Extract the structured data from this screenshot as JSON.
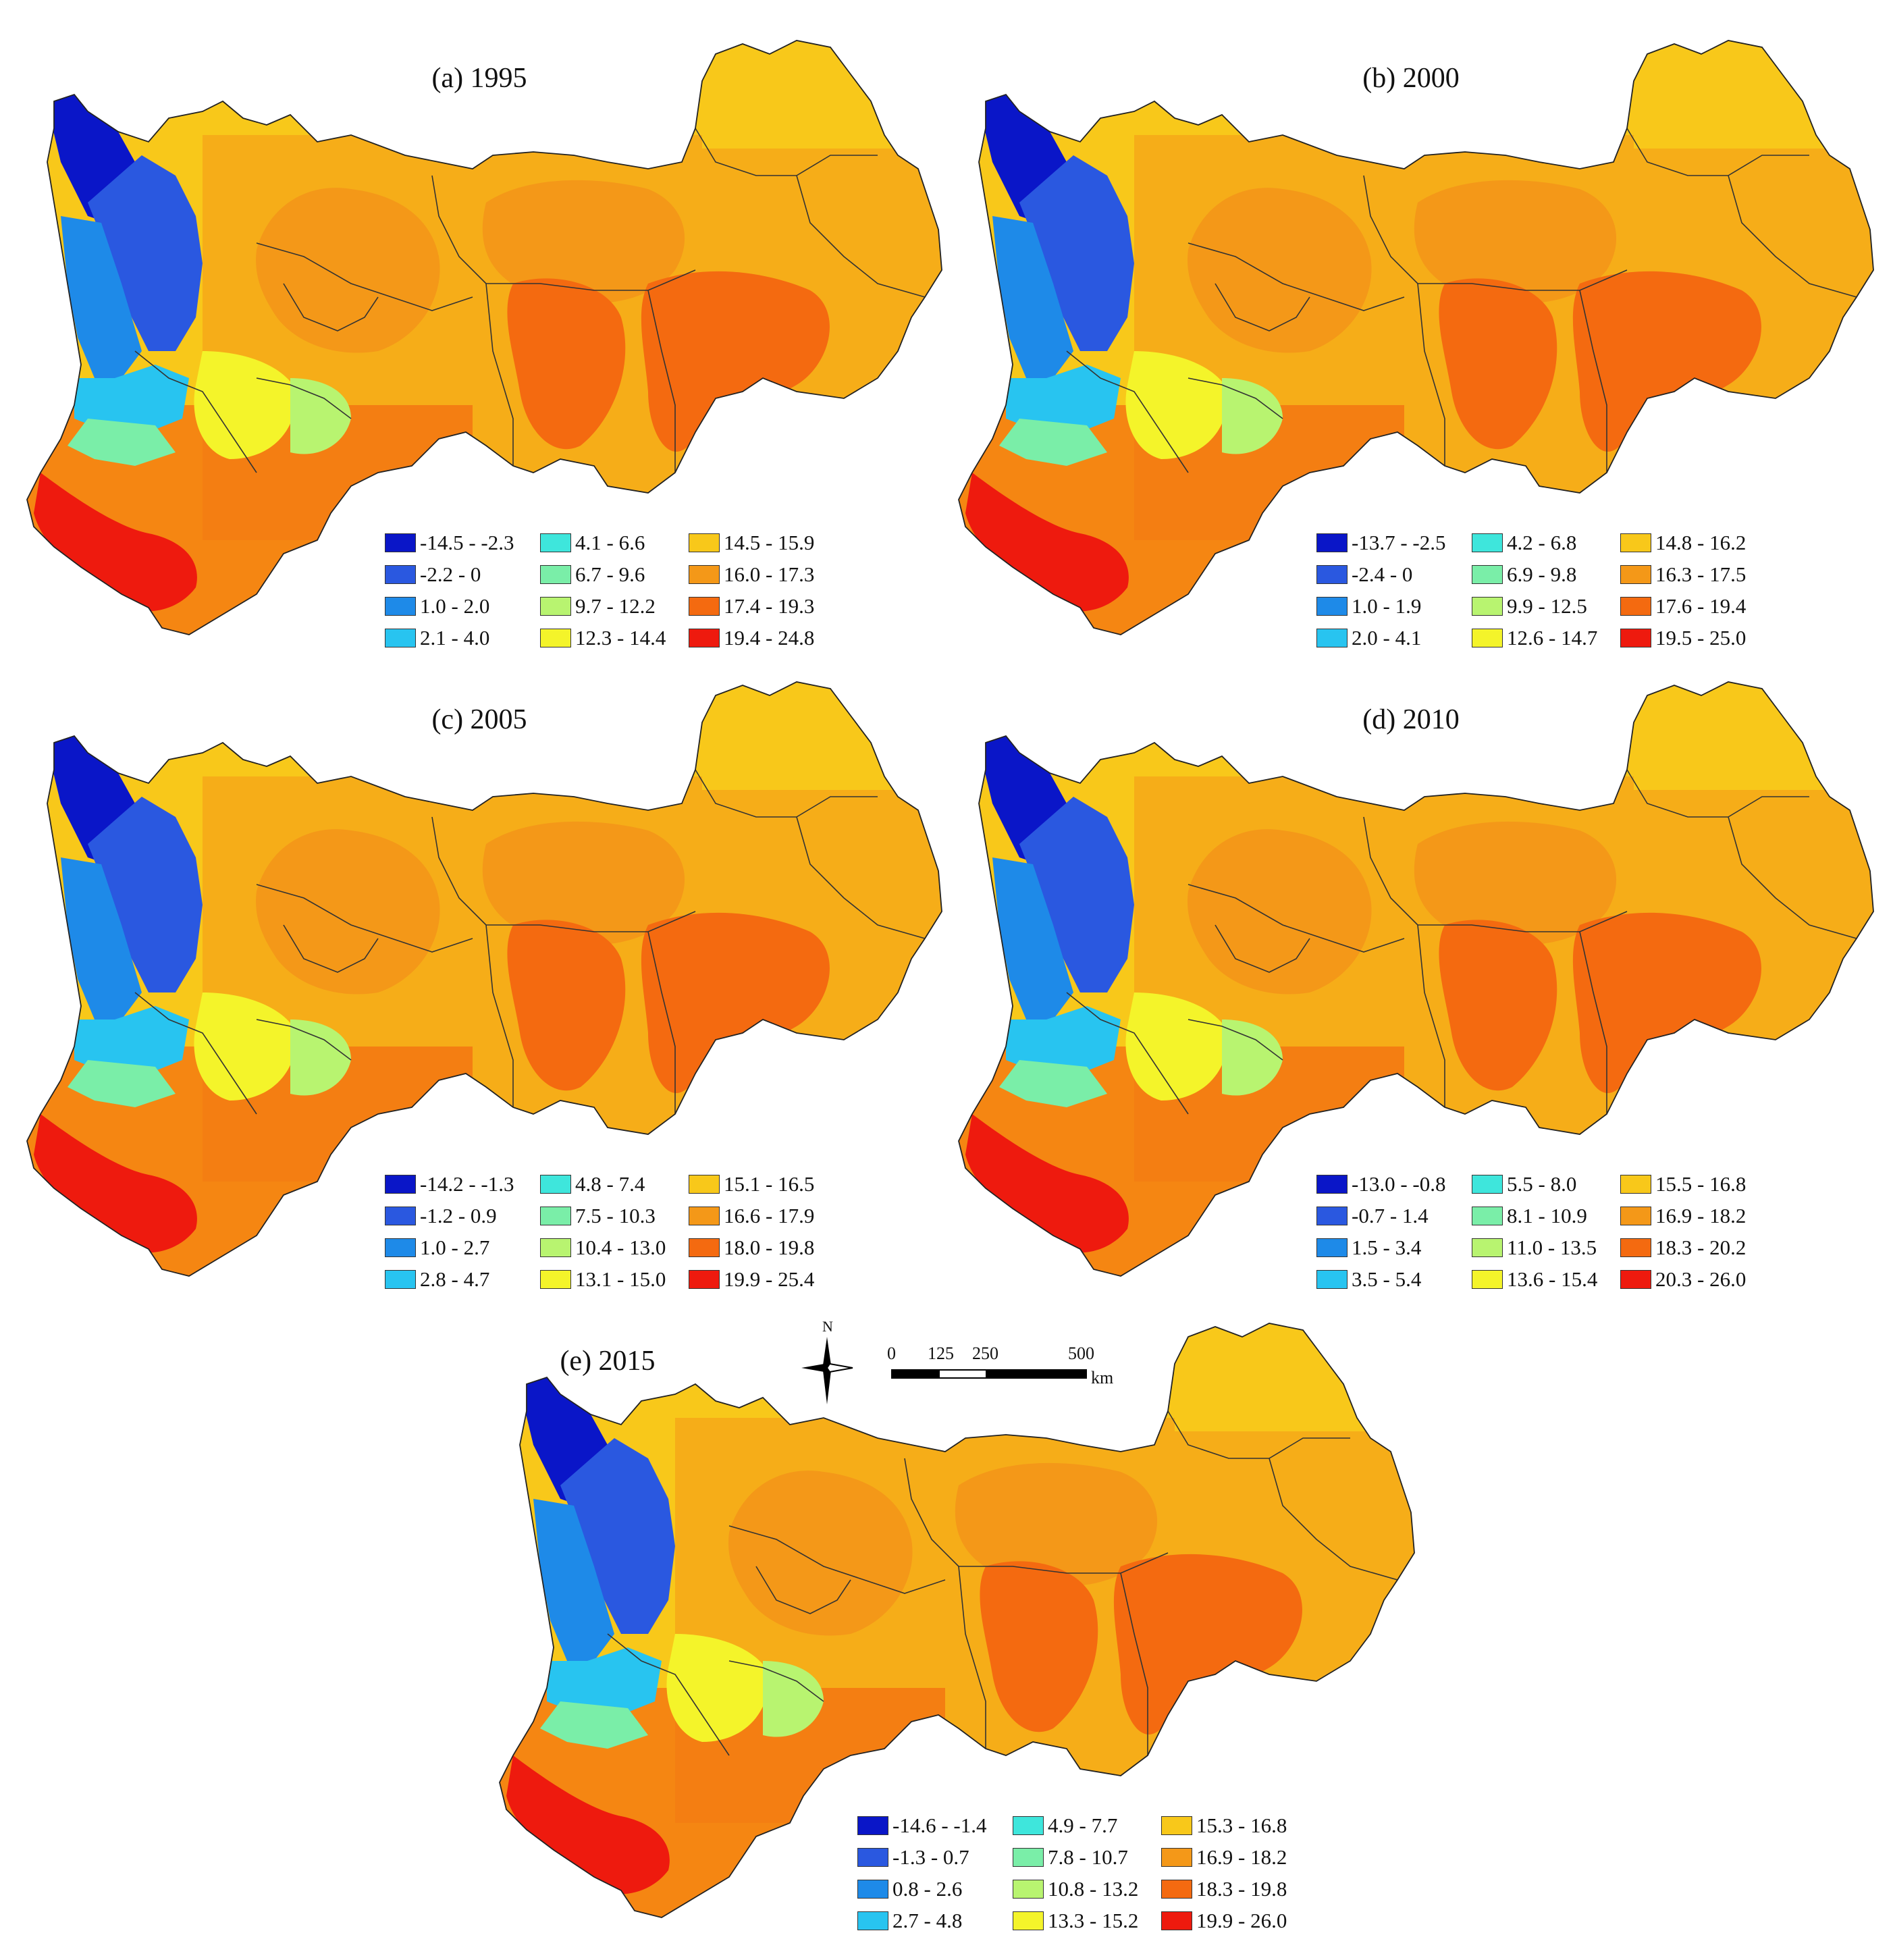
{
  "colors": {
    "c1": "#0a16c8",
    "c2": "#2a58e0",
    "c3": "#1e8ae8",
    "c4": "#28c4f0",
    "c5": "#3ee6dc",
    "c6": "#7aeea8",
    "c7": "#b8f470",
    "c8": "#f4f42a",
    "c9": "#f8c81a",
    "c10": "#f49818",
    "c11": "#f46a10",
    "c12": "#ee1a0e"
  },
  "panels": [
    {
      "title": "(a) 1995",
      "legend": [
        "-14.5 - -2.3",
        "-2.2 - 0",
        "1.0 - 2.0",
        "2.1 - 4.0",
        "4.1 - 6.6",
        "6.7 - 9.6",
        "9.7 - 12.2",
        "12.3 - 14.4",
        "14.5 - 15.9",
        "16.0 - 17.3",
        "17.4 - 19.3",
        "19.4 - 24.8"
      ]
    },
    {
      "title": "(b) 2000",
      "legend": [
        "-13.7 - -2.5",
        "-2.4 - 0",
        "1.0 - 1.9",
        "2.0 - 4.1",
        "4.2 - 6.8",
        "6.9 - 9.8",
        "9.9 - 12.5",
        "12.6 - 14.7",
        "14.8 - 16.2",
        "16.3 - 17.5",
        "17.6 - 19.4",
        "19.5 - 25.0"
      ]
    },
    {
      "title": "(c) 2005",
      "legend": [
        "-14.2 - -1.3",
        "-1.2 - 0.9",
        "1.0 - 2.7",
        "2.8 - 4.7",
        "4.8 - 7.4",
        "7.5 - 10.3",
        "10.4 - 13.0",
        "13.1 - 15.0",
        "15.1 - 16.5",
        "16.6 - 17.9",
        "18.0 - 19.8",
        "19.9 - 25.4"
      ]
    },
    {
      "title": "(d) 2010",
      "legend": [
        "-13.0 - -0.8",
        "-0.7 - 1.4",
        "1.5 - 3.4",
        "3.5 - 5.4",
        "5.5 - 8.0",
        "8.1 - 10.9",
        "11.0 - 13.5",
        "13.6 - 15.4",
        "15.5 - 16.8",
        "16.9 - 18.2",
        "18.3 - 20.2",
        "20.3 - 26.0"
      ]
    },
    {
      "title": "(e) 2015",
      "legend": [
        "-14.6 - -1.4",
        "-1.3 - 0.7",
        "0.8 - 2.6",
        "2.7 - 4.8",
        "4.9 - 7.7",
        "7.8 - 10.7",
        "10.8 - 13.2",
        "13.3 - 15.2",
        "15.3 - 16.8",
        "16.9 - 18.2",
        "18.3 - 19.8",
        "19.9 - 26.0"
      ]
    }
  ],
  "north_arrow": {
    "label": "N",
    "icon": "compass-rose-icon"
  },
  "scale_bar": {
    "ticks": [
      "0",
      "125",
      "250",
      "500"
    ],
    "unit": "km"
  }
}
